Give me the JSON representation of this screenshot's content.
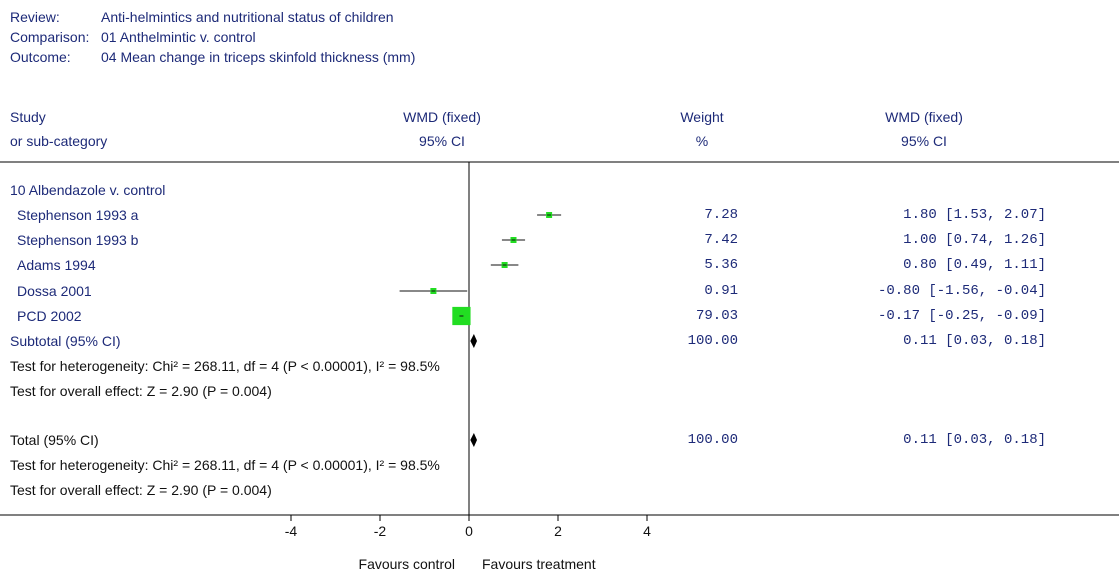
{
  "header": {
    "review_label": "Review:",
    "review_value": "Anti-helmintics and nutritional status of children",
    "comparison_label": "Comparison:",
    "comparison_value": "01 Anthelmintic v. control",
    "outcome_label": "Outcome:",
    "outcome_value": "04 Mean change in triceps skinfold thickness (mm)"
  },
  "columns": {
    "study_1": "Study",
    "study_2": "or sub-category",
    "wmd1_1": "WMD (fixed)",
    "wmd1_2": "95% CI",
    "weight_1": "Weight",
    "weight_2": "%",
    "wmd2_1": "WMD (fixed)",
    "wmd2_2": "95% CI"
  },
  "groups": [
    {
      "title": "10 Albendazole v. control",
      "subtotal_label": "Subtotal (95% CI)",
      "subtotal_weight": "100.00",
      "subtotal_ci": "0.11 [0.03, 0.18]",
      "heterogeneity": "Test for heterogeneity: Chi² = 268.11, df = 4 (P < 0.00001), I² = 98.5%",
      "overall_effect": "Test for overall effect: Z = 2.90 (P = 0.004)"
    }
  ],
  "total": {
    "label": "Total (95% CI)",
    "weight": "100.00",
    "ci": "0.11 [0.03, 0.18]",
    "heterogeneity": "Test for heterogeneity: Chi² = 268.11, df = 4 (P < 0.00001), I² = 98.5%",
    "overall_effect": "Test for overall effect: Z = 2.90 (P = 0.004)"
  },
  "axis": {
    "ticks": [
      "-4",
      "-2",
      "0",
      "2",
      "4"
    ],
    "favours_left": "Favours control",
    "favours_right": "Favours treatment"
  },
  "colors": {
    "marker": "#22dd22",
    "diamond": "#000000",
    "text": "#1d2a78"
  },
  "chart_data": {
    "type": "forest",
    "xlim": [
      -4,
      4
    ],
    "xticks": [
      -4,
      -2,
      0,
      2,
      4
    ],
    "studies": [
      {
        "name": "Stephenson 1993 a",
        "weight": 7.28,
        "estimate": 1.8,
        "lower": 1.53,
        "upper": 2.07,
        "weight_label": "7.28",
        "ci_label": "1.80 [1.53, 2.07]"
      },
      {
        "name": "Stephenson 1993 b",
        "weight": 7.42,
        "estimate": 1.0,
        "lower": 0.74,
        "upper": 1.26,
        "weight_label": "7.42",
        "ci_label": "1.00 [0.74, 1.26]"
      },
      {
        "name": "Adams 1994",
        "weight": 5.36,
        "estimate": 0.8,
        "lower": 0.49,
        "upper": 1.11,
        "weight_label": "5.36",
        "ci_label": "0.80 [0.49, 1.11]"
      },
      {
        "name": "Dossa 2001",
        "weight": 0.91,
        "estimate": -0.8,
        "lower": -1.56,
        "upper": -0.04,
        "weight_label": "0.91",
        "ci_label": "-0.80 [-1.56, -0.04]"
      },
      {
        "name": "PCD 2002",
        "weight": 79.03,
        "estimate": -0.17,
        "lower": -0.25,
        "upper": -0.09,
        "weight_label": "79.03",
        "ci_label": "-0.17 [-0.25, -0.09]"
      }
    ],
    "subtotal": {
      "estimate": 0.11,
      "lower": 0.03,
      "upper": 0.18
    },
    "total": {
      "estimate": 0.11,
      "lower": 0.03,
      "upper": 0.18
    }
  }
}
